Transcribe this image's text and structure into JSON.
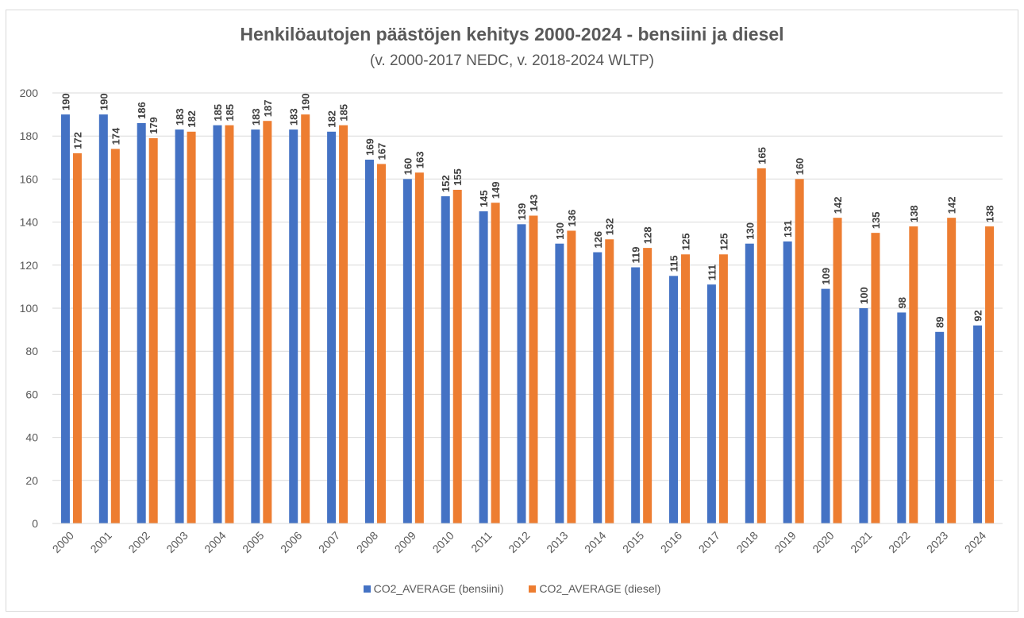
{
  "chart_data": {
    "type": "bar",
    "title": "Henkilöautojen päästöjen kehitys 2000-2024 - bensiini ja diesel",
    "subtitle": "(v. 2000-2017 NEDC, v. 2018-2024 WLTP)",
    "categories": [
      "2000",
      "2001",
      "2002",
      "2003",
      "2004",
      "2005",
      "2006",
      "2007",
      "2008",
      "2009",
      "2010",
      "2011",
      "2012",
      "2013",
      "2014",
      "2015",
      "2016",
      "2017",
      "2018",
      "2019",
      "2020",
      "2021",
      "2022",
      "2023",
      "2024"
    ],
    "series": [
      {
        "name": "CO2_AVERAGE (bensiini)",
        "color": "#4472c4",
        "values": [
          190,
          190,
          186,
          183,
          185,
          183,
          183,
          182,
          169,
          160,
          152,
          145,
          139,
          130,
          126,
          119,
          115,
          111,
          130,
          131,
          109,
          100,
          98,
          89,
          92
        ]
      },
      {
        "name": "CO2_AVERAGE (diesel)",
        "color": "#ed7d31",
        "values": [
          172,
          174,
          179,
          182,
          185,
          187,
          190,
          185,
          167,
          163,
          155,
          149,
          143,
          136,
          132,
          128,
          125,
          125,
          165,
          160,
          142,
          135,
          138,
          142,
          138
        ]
      }
    ],
    "ylim": [
      0,
      200
    ],
    "yticks": [
      0,
      20,
      40,
      60,
      80,
      100,
      120,
      140,
      160,
      180,
      200
    ],
    "xlabel": "",
    "ylabel": "",
    "grid": true,
    "legend": "bottom"
  }
}
